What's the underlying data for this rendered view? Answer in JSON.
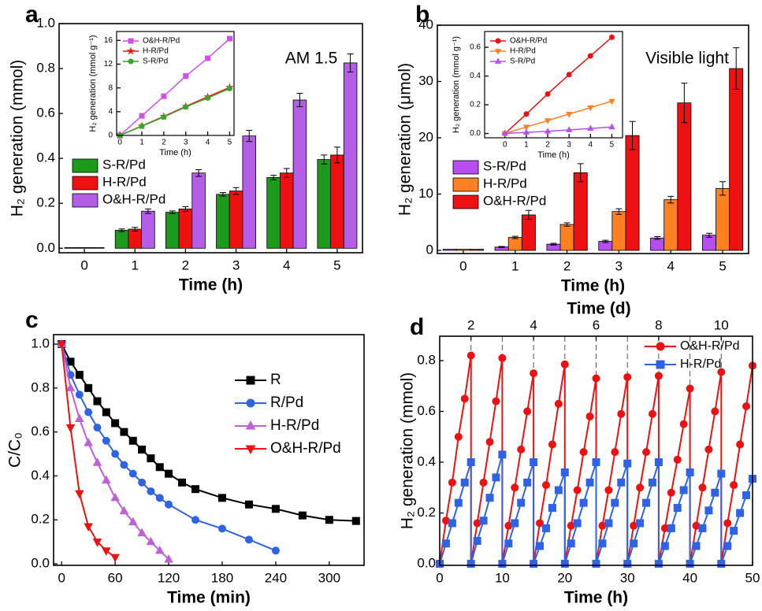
{
  "chart_data": [
    {
      "type": "bar",
      "label": "a",
      "annotation": "AM 1.5",
      "xlabel": "Time (h)",
      "ylabel": "H₂ generation (mmol)",
      "categories": [
        "0",
        "1",
        "2",
        "3",
        "4",
        "5"
      ],
      "ylim": [
        -0.02,
        1.0
      ],
      "yticks": [
        {
          "value": 0,
          "label": "0.0"
        },
        0.2,
        0.4,
        0.6,
        0.8,
        {
          "value": 1,
          "label": "1.0"
        }
      ],
      "series": [
        {
          "name": "S-R/Pd",
          "color": "#1c9a1c",
          "values": [
            0.003,
            0.08,
            0.16,
            0.24,
            0.315,
            0.395
          ],
          "errors": [
            0,
            0.006,
            0.006,
            0.008,
            0.01,
            0.02
          ]
        },
        {
          "name": "H-R/Pd",
          "color": "#ee1111",
          "values": [
            0.003,
            0.085,
            0.175,
            0.255,
            0.335,
            0.415
          ],
          "errors": [
            0,
            0.008,
            0.01,
            0.015,
            0.02,
            0.035
          ]
        },
        {
          "name": "O&H-R/Pd",
          "color": "#b45ee8",
          "values": [
            0.003,
            0.165,
            0.335,
            0.5,
            0.66,
            0.825
          ],
          "errors": [
            0,
            0.01,
            0.015,
            0.025,
            0.03,
            0.04
          ]
        }
      ]
    },
    {
      "type": "line",
      "xlabel": "Time (h)",
      "ylabel": "H₂ generation (mmol g⁻¹)",
      "xlim": [
        -0.15,
        5.2
      ],
      "xticks": [
        0,
        1,
        2,
        3,
        4,
        5
      ],
      "ylim": [
        0,
        17.5
      ],
      "yticks": [
        0,
        4,
        8,
        12,
        16
      ],
      "x": [
        0,
        1,
        2,
        3,
        4,
        5
      ],
      "series": [
        {
          "name": "O&H-R/Pd",
          "color": "#d050e8",
          "marker": "square",
          "values": [
            0,
            3.3,
            6.6,
            10,
            13,
            16.3
          ]
        },
        {
          "name": "H-R/Pd",
          "color": "#e81c1c",
          "marker": "star",
          "values": [
            0,
            1.6,
            3.2,
            4.9,
            6.5,
            8.1
          ]
        },
        {
          "name": "S-R/Pd",
          "color": "#36a62a",
          "marker": "circle",
          "values": [
            0,
            1.55,
            3.1,
            4.8,
            6.3,
            7.9
          ]
        }
      ]
    },
    {
      "type": "bar",
      "label": "b",
      "annotation": "Visible light",
      "xlabel": "Time (h)",
      "ylabel": "H₂ generation (μmol)",
      "categories": [
        "0",
        "1",
        "2",
        "3",
        "4",
        "5"
      ],
      "ylim": [
        -0.56,
        40
      ],
      "yticks": [
        0,
        10,
        20,
        30,
        40
      ],
      "series": [
        {
          "name": "S-R/Pd",
          "color": "#b84ef0",
          "values": [
            0.2,
            0.6,
            1.1,
            1.6,
            2.2,
            2.7
          ],
          "errors": [
            0,
            0.1,
            0.15,
            0.2,
            0.25,
            0.35
          ]
        },
        {
          "name": "H-R/Pd",
          "color": "#ff8020",
          "values": [
            0.2,
            2.3,
            4.6,
            6.9,
            9.0,
            11.0
          ],
          "errors": [
            0,
            0.2,
            0.3,
            0.5,
            0.6,
            1.2
          ]
        },
        {
          "name": "O&H-R/Pd",
          "color": "#ee1111",
          "values": [
            0.2,
            6.3,
            13.8,
            20.4,
            26.2,
            32.3
          ],
          "errors": [
            0,
            0.8,
            1.6,
            2.5,
            3.5,
            3.7
          ]
        }
      ]
    },
    {
      "type": "line",
      "xlabel": "Time (h)",
      "ylabel": "H₂ generation (mmol g⁻¹)",
      "xlim": [
        -0.95,
        5.5
      ],
      "xticks": [
        0,
        1,
        2,
        3,
        4,
        5
      ],
      "ylim": [
        -0.03,
        0.71
      ],
      "yticks": [
        {
          "value": 0,
          "label": "0.0"
        },
        0.2,
        0.4,
        0.6
      ],
      "x": [
        0,
        1,
        2,
        3,
        4,
        5
      ],
      "series": [
        {
          "name": "O&H-R/Pd",
          "color": "#ee1111",
          "marker": "circle",
          "values": [
            0,
            0.135,
            0.275,
            0.41,
            0.54,
            0.67
          ]
        },
        {
          "name": "H-R/Pd",
          "color": "#ff8020",
          "marker": "triangle-down",
          "values": [
            0,
            0.045,
            0.09,
            0.135,
            0.18,
            0.225
          ]
        },
        {
          "name": "S-R/Pd",
          "color": "#b84ef0",
          "marker": "triangle-up",
          "values": [
            0,
            0.008,
            0.015,
            0.025,
            0.035,
            0.045
          ]
        }
      ]
    },
    {
      "type": "line",
      "label": "c",
      "xlabel": "Time (min)",
      "ylabel": "C/C₀",
      "xlim": [
        -9,
        339
      ],
      "xticks": [
        0,
        60,
        120,
        180,
        240,
        300
      ],
      "ylim": [
        -0.007,
        1.043
      ],
      "yticks": [
        {
          "value": 0,
          "label": "0.0"
        },
        0.2,
        0.4,
        0.6,
        0.8,
        {
          "value": 1,
          "label": "1.0"
        }
      ],
      "series": [
        {
          "name": "R",
          "color": "#000000",
          "marker": "square",
          "x": [
            0,
            10,
            20,
            30,
            40,
            50,
            60,
            70,
            80,
            90,
            100,
            110,
            120,
            135,
            150,
            180,
            210,
            240,
            270,
            300,
            330
          ],
          "values": [
            1,
            0.92,
            0.86,
            0.8,
            0.74,
            0.69,
            0.64,
            0.6,
            0.56,
            0.52,
            0.48,
            0.44,
            0.41,
            0.37,
            0.34,
            0.3,
            0.27,
            0.25,
            0.22,
            0.2,
            0.195
          ]
        },
        {
          "name": "R/Pd",
          "color": "#2f63e6",
          "marker": "circle",
          "x": [
            0,
            10,
            20,
            30,
            40,
            50,
            60,
            70,
            80,
            90,
            100,
            110,
            120,
            150,
            180,
            210,
            240
          ],
          "values": [
            1,
            0.86,
            0.77,
            0.69,
            0.62,
            0.56,
            0.5,
            0.45,
            0.41,
            0.37,
            0.33,
            0.3,
            0.27,
            0.2,
            0.16,
            0.11,
            0.06
          ]
        },
        {
          "name": "H-R/Pd",
          "color": "#c060d8",
          "marker": "triangle-up",
          "x": [
            0,
            10,
            20,
            30,
            40,
            50,
            60,
            70,
            80,
            90,
            100,
            110,
            120
          ],
          "values": [
            1,
            0.8,
            0.66,
            0.55,
            0.46,
            0.38,
            0.3,
            0.24,
            0.19,
            0.14,
            0.1,
            0.06,
            0.02
          ]
        },
        {
          "name": "O&H-R/Pd",
          "color": "#ee1111",
          "marker": "triangle-down",
          "x": [
            0,
            10,
            20,
            30,
            40,
            50,
            60
          ],
          "values": [
            1,
            0.62,
            0.32,
            0.17,
            0.1,
            0.06,
            0.03
          ]
        }
      ]
    },
    {
      "type": "line",
      "label": "d",
      "xlabel": "Time (h)",
      "ylabel": "H₂ generation (mmol)",
      "x2label": "Time (d)",
      "xlim": [
        0,
        50
      ],
      "xticks": [
        0,
        10,
        20,
        30,
        40,
        50
      ],
      "x2lim": [
        1,
        11
      ],
      "x2ticks": [
        2,
        4,
        6,
        8,
        10
      ],
      "ylim": [
        -0.006,
        0.896
      ],
      "yticks": [
        {
          "value": 0,
          "label": "0.0"
        },
        0.2,
        0.4,
        0.6,
        0.8
      ],
      "vlines": [
        5,
        10,
        15,
        20,
        25,
        30,
        35,
        40,
        45
      ],
      "x": [
        0,
        1,
        2,
        3,
        4,
        5,
        5,
        6,
        7,
        8,
        9,
        10,
        10,
        11,
        12,
        13,
        14,
        15,
        15,
        16,
        17,
        18,
        19,
        20,
        20,
        21,
        22,
        23,
        24,
        25,
        25,
        26,
        27,
        28,
        29,
        30,
        30,
        31,
        32,
        33,
        34,
        35,
        35,
        36,
        37,
        38,
        39,
        40,
        40,
        41,
        42,
        43,
        44,
        45,
        45,
        46,
        47,
        48,
        49,
        50
      ],
      "series": [
        {
          "name": "O&H-R/Pd",
          "color": "#ee1111",
          "marker": "circle",
          "values": [
            0,
            0.17,
            0.32,
            0.5,
            0.65,
            0.82,
            0,
            0.16,
            0.32,
            0.48,
            0.64,
            0.81,
            0,
            0.15,
            0.3,
            0.45,
            0.6,
            0.75,
            0,
            0.16,
            0.31,
            0.47,
            0.63,
            0.785,
            0,
            0.15,
            0.29,
            0.44,
            0.58,
            0.73,
            0,
            0.15,
            0.29,
            0.44,
            0.59,
            0.735,
            0,
            0.15,
            0.3,
            0.44,
            0.59,
            0.74,
            0,
            0.14,
            0.28,
            0.41,
            0.55,
            0.69,
            0,
            0.15,
            0.3,
            0.45,
            0.6,
            0.755,
            0,
            0.16,
            0.31,
            0.47,
            0.62,
            0.78
          ]
        },
        {
          "name": "H-R/Pd",
          "color": "#2f63e6",
          "marker": "square",
          "values": [
            0,
            0.08,
            0.16,
            0.24,
            0.32,
            0.4,
            0,
            0.09,
            0.17,
            0.26,
            0.34,
            0.43,
            0,
            0.08,
            0.16,
            0.24,
            0.32,
            0.4,
            0,
            0.07,
            0.14,
            0.22,
            0.29,
            0.36,
            0,
            0.08,
            0.16,
            0.24,
            0.32,
            0.4,
            0,
            0.08,
            0.16,
            0.24,
            0.32,
            0.395,
            0,
            0.08,
            0.16,
            0.24,
            0.32,
            0.4,
            0,
            0.07,
            0.14,
            0.22,
            0.29,
            0.36,
            0,
            0.07,
            0.14,
            0.21,
            0.28,
            0.355,
            0,
            0.07,
            0.13,
            0.2,
            0.27,
            0.335
          ]
        }
      ]
    }
  ]
}
